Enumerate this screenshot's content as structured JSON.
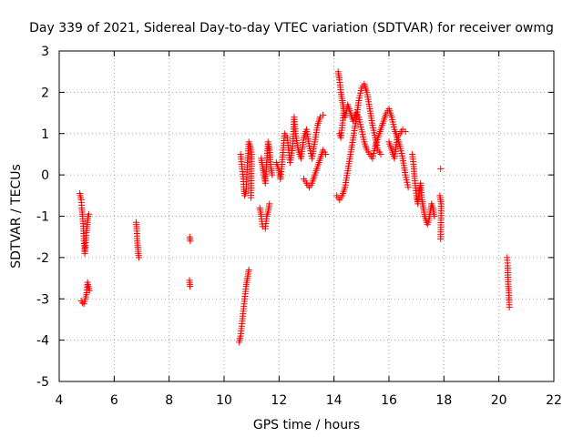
{
  "chart_data": {
    "type": "scatter",
    "title": "Day 339 of 2021, Sidereal Day-to-day VTEC variation (SDTVAR) for receiver owmg",
    "xlabel": "GPS time / hours",
    "ylabel": "SDTVAR / TECUs",
    "xlim": [
      4,
      22
    ],
    "ylim": [
      -5,
      3
    ],
    "xticks": [
      "4",
      "6",
      "8",
      "10",
      "12",
      "14",
      "16",
      "18",
      "20",
      "22"
    ],
    "yticks": [
      "3",
      "2",
      "1",
      "0",
      "-1",
      "-2",
      "-3",
      "-4",
      "-5"
    ],
    "grid": true,
    "marker": "+",
    "series": [
      {
        "name": "SDTVAR",
        "color": "#ff0000",
        "segments": [
          [
            [
              4.75,
              -0.45
            ],
            [
              4.8,
              -0.6
            ],
            [
              4.82,
              -0.8
            ],
            [
              4.85,
              -1.0
            ],
            [
              4.88,
              -1.3
            ],
            [
              4.9,
              -1.6
            ],
            [
              4.93,
              -1.9
            ],
            [
              4.96,
              -1.7
            ],
            [
              4.99,
              -1.4
            ],
            [
              5.02,
              -1.2
            ],
            [
              5.05,
              -1.0
            ],
            [
              5.08,
              -0.95
            ]
          ],
          [
            [
              4.8,
              -3.05
            ],
            [
              4.85,
              -3.1
            ],
            [
              4.9,
              -3.12
            ],
            [
              4.95,
              -3.0
            ],
            [
              5.0,
              -2.85
            ],
            [
              5.03,
              -2.6
            ],
            [
              5.06,
              -2.7
            ],
            [
              5.1,
              -2.8
            ]
          ],
          [
            [
              6.8,
              -1.15
            ],
            [
              6.82,
              -1.3
            ],
            [
              6.84,
              -1.6
            ],
            [
              6.86,
              -1.75
            ],
            [
              6.88,
              -1.9
            ],
            [
              6.9,
              -2.0
            ]
          ],
          [
            [
              8.75,
              -1.5
            ],
            [
              8.77,
              -1.6
            ]
          ],
          [
            [
              8.74,
              -2.55
            ],
            [
              8.76,
              -2.7
            ]
          ],
          [
            [
              10.55,
              -4.05
            ],
            [
              10.6,
              -3.9
            ],
            [
              10.65,
              -3.6
            ],
            [
              10.7,
              -3.3
            ],
            [
              10.75,
              -3.0
            ],
            [
              10.8,
              -2.7
            ],
            [
              10.85,
              -2.5
            ],
            [
              10.9,
              -2.3
            ]
          ],
          [
            [
              10.6,
              0.5
            ],
            [
              10.65,
              0.2
            ],
            [
              10.7,
              -0.1
            ],
            [
              10.72,
              -0.35
            ],
            [
              10.75,
              -0.5
            ],
            [
              10.8,
              -0.4
            ],
            [
              10.85,
              0.3
            ],
            [
              10.9,
              0.8
            ],
            [
              10.95,
              0.7
            ],
            [
              11.0,
              0.5
            ],
            [
              10.98,
              -0.55
            ]
          ],
          [
            [
              11.3,
              -0.8
            ],
            [
              11.35,
              -1.0
            ],
            [
              11.4,
              -1.25
            ],
            [
              11.5,
              -1.3
            ],
            [
              11.55,
              -1.0
            ],
            [
              11.6,
              -0.9
            ],
            [
              11.65,
              -0.7
            ]
          ],
          [
            [
              11.35,
              0.4
            ],
            [
              11.4,
              0.2
            ],
            [
              11.45,
              0.0
            ],
            [
              11.5,
              -0.2
            ],
            [
              11.55,
              0.3
            ],
            [
              11.6,
              0.8
            ],
            [
              11.65,
              0.6
            ],
            [
              11.7,
              0.2
            ],
            [
              11.75,
              0.0
            ]
          ],
          [
            [
              11.9,
              0.3
            ],
            [
              12.0,
              0.1
            ],
            [
              12.05,
              -0.1
            ],
            [
              12.1,
              0.2
            ],
            [
              12.15,
              0.6
            ],
            [
              12.2,
              1.0
            ],
            [
              12.3,
              0.9
            ],
            [
              12.35,
              0.6
            ],
            [
              12.4,
              0.3
            ],
            [
              12.5,
              0.7
            ],
            [
              12.55,
              1.4
            ],
            [
              12.6,
              1.0
            ],
            [
              12.7,
              0.6
            ],
            [
              12.8,
              0.4
            ],
            [
              12.9,
              0.9
            ],
            [
              13.0,
              1.1
            ],
            [
              13.1,
              0.7
            ],
            [
              13.2,
              0.4
            ],
            [
              13.3,
              0.8
            ],
            [
              13.4,
              1.2
            ],
            [
              13.5,
              1.4
            ],
            [
              13.6,
              1.45
            ]
          ],
          [
            [
              12.9,
              -0.1
            ],
            [
              13.0,
              -0.2
            ],
            [
              13.1,
              -0.3
            ],
            [
              13.2,
              -0.2
            ],
            [
              13.3,
              0.0
            ],
            [
              13.4,
              0.2
            ],
            [
              13.5,
              0.4
            ],
            [
              13.6,
              0.6
            ],
            [
              13.7,
              0.5
            ]
          ],
          [
            [
              14.1,
              -0.5
            ],
            [
              14.2,
              -0.6
            ],
            [
              14.3,
              -0.5
            ],
            [
              14.4,
              -0.3
            ],
            [
              14.5,
              0.1
            ],
            [
              14.6,
              0.5
            ],
            [
              14.7,
              0.9
            ],
            [
              14.8,
              1.3
            ],
            [
              14.9,
              1.8
            ],
            [
              15.0,
              2.1
            ],
            [
              15.1,
              2.2
            ],
            [
              15.2,
              2.0
            ],
            [
              15.3,
              1.6
            ],
            [
              15.4,
              1.2
            ],
            [
              15.5,
              0.9
            ],
            [
              15.6,
              0.6
            ],
            [
              15.7,
              0.5
            ]
          ],
          [
            [
              14.15,
              2.5
            ],
            [
              14.2,
              2.3
            ],
            [
              14.25,
              2.0
            ],
            [
              14.3,
              1.8
            ],
            [
              14.35,
              1.6
            ],
            [
              14.4,
              1.4
            ],
            [
              14.45,
              1.55
            ],
            [
              14.5,
              1.7
            ],
            [
              14.6,
              1.5
            ],
            [
              14.7,
              1.3
            ],
            [
              14.8,
              1.5
            ],
            [
              14.9,
              1.4
            ],
            [
              15.0,
              1.1
            ],
            [
              15.1,
              0.8
            ],
            [
              15.2,
              0.6
            ],
            [
              15.3,
              0.5
            ],
            [
              15.4,
              0.4
            ],
            [
              15.5,
              0.7
            ],
            [
              15.6,
              0.9
            ],
            [
              15.7,
              1.1
            ],
            [
              15.8,
              1.3
            ],
            [
              15.9,
              1.5
            ],
            [
              16.0,
              1.6
            ],
            [
              16.1,
              1.4
            ],
            [
              16.2,
              1.1
            ],
            [
              16.3,
              0.9
            ],
            [
              16.4,
              0.7
            ],
            [
              16.5,
              0.4
            ],
            [
              16.6,
              0.0
            ],
            [
              16.7,
              -0.3
            ]
          ],
          [
            [
              14.2,
              1.0
            ],
            [
              14.25,
              0.9
            ],
            [
              14.3,
              1.2
            ],
            [
              14.35,
              1.5
            ]
          ],
          [
            [
              16.0,
              0.8
            ],
            [
              16.1,
              0.6
            ],
            [
              16.2,
              0.4
            ],
            [
              16.3,
              0.9
            ],
            [
              16.4,
              1.0
            ],
            [
              16.5,
              1.1
            ],
            [
              16.6,
              1.05
            ]
          ],
          [
            [
              16.85,
              0.5
            ],
            [
              16.9,
              0.2
            ],
            [
              16.95,
              -0.2
            ],
            [
              17.0,
              -0.5
            ],
            [
              17.05,
              -0.7
            ],
            [
              17.1,
              -0.4
            ],
            [
              17.15,
              -0.2
            ],
            [
              17.2,
              -0.6
            ],
            [
              17.25,
              -0.8
            ],
            [
              17.3,
              -1.0
            ],
            [
              17.35,
              -1.1
            ],
            [
              17.4,
              -1.2
            ],
            [
              17.45,
              -1.1
            ],
            [
              17.5,
              -0.9
            ],
            [
              17.55,
              -0.7
            ],
            [
              17.6,
              -0.8
            ],
            [
              17.65,
              -1.0
            ]
          ],
          [
            [
              17.88,
              0.15
            ]
          ],
          [
            [
              17.85,
              -0.5
            ],
            [
              17.9,
              -0.7
            ],
            [
              17.88,
              -1.55
            ]
          ],
          [
            [
              20.3,
              -2.0
            ],
            [
              20.32,
              -2.2
            ],
            [
              20.34,
              -2.7
            ],
            [
              20.36,
              -2.8
            ],
            [
              20.38,
              -3.2
            ]
          ]
        ]
      }
    ]
  }
}
